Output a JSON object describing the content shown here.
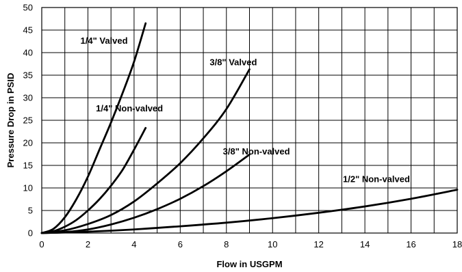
{
  "chart_data": {
    "type": "line",
    "title": "",
    "xlabel": "Flow in USGPM",
    "ylabel": "Pressure Drop in PSID",
    "xlim": [
      0,
      18
    ],
    "ylim": [
      0,
      50
    ],
    "x_ticks": [
      0,
      2,
      4,
      6,
      8,
      10,
      12,
      14,
      16,
      18
    ],
    "y_ticks": [
      0,
      5,
      10,
      15,
      20,
      25,
      30,
      35,
      40,
      45,
      50
    ],
    "x_minor_step": 1,
    "y_minor_step": 5,
    "grid": true,
    "legend": "none",
    "series": [
      {
        "name": "1/4\" Valved",
        "x": [
          0,
          0.5,
          1,
          1.5,
          2,
          2.5,
          3,
          3.5,
          4,
          4.5
        ],
        "y": [
          0,
          0.9,
          3.5,
          7.5,
          12.5,
          18.5,
          24.5,
          31,
          38,
          46.5
        ]
      },
      {
        "name": "1/4\" Non-valved",
        "x": [
          0,
          0.5,
          1,
          1.5,
          2,
          2.5,
          3,
          3.5,
          4,
          4.5
        ],
        "y": [
          0,
          0.4,
          1.4,
          2.9,
          5,
          7.5,
          10.5,
          14,
          18.5,
          23.3
        ]
      },
      {
        "name": "3/8\" Valved",
        "x": [
          0,
          1,
          2,
          3,
          4,
          5,
          6,
          7,
          8,
          9
        ],
        "y": [
          0,
          0.6,
          2,
          4,
          7,
          11,
          15.5,
          21,
          27.5,
          36.3
        ]
      },
      {
        "name": "3/8\" Non-valved",
        "x": [
          0,
          1,
          2,
          3,
          4,
          5,
          6,
          7,
          8,
          9
        ],
        "y": [
          0,
          0.2,
          0.8,
          1.9,
          3.4,
          5.3,
          7.6,
          10.4,
          13.7,
          17.4
        ]
      },
      {
        "name": "1/2\" Non-valved",
        "x": [
          0,
          2,
          4,
          6,
          8,
          10,
          12,
          14,
          16,
          18
        ],
        "y": [
          0,
          0.3,
          0.8,
          1.5,
          2.3,
          3.3,
          4.5,
          5.9,
          7.6,
          9.6
        ]
      }
    ]
  },
  "series_labels": [
    {
      "text": "1/4\" Valved",
      "anchor_x": 2.7,
      "anchor_y": 42
    },
    {
      "text": "1/4\" Non-valved",
      "anchor_x": 3.8,
      "anchor_y": 27
    },
    {
      "text": "3/8\" Valved",
      "anchor_x": 8.3,
      "anchor_y": 37.2
    },
    {
      "text": "3/8\" Non-valved",
      "anchor_x": 9.3,
      "anchor_y": 17.4
    },
    {
      "text": "1/2\" Non-valved",
      "anchor_x": 14.5,
      "anchor_y": 11.3
    }
  ],
  "colors": {
    "line": "#000000",
    "grid": "#000000",
    "background": "#ffffff"
  }
}
